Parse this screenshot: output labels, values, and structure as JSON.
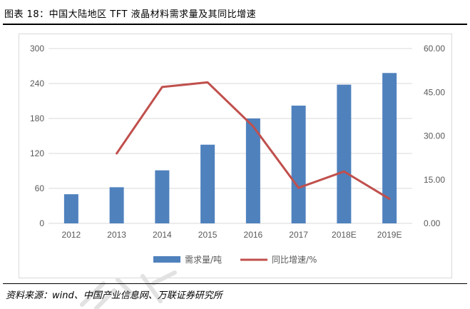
{
  "figure_title": "图表 18：中国大陆地区 TFT 液晶材料需求量及其同比增速",
  "source_text": "资料来源：wind、中国产业信息网、万联证券研究所",
  "colors": {
    "bar": "#4f81bd",
    "line": "#c0504d",
    "grid": "#d9d9d9",
    "axis_text": "#595959"
  },
  "chart_data": {
    "type": "bar",
    "categories": [
      "2012",
      "2013",
      "2014",
      "2015",
      "2016",
      "2017",
      "2018E",
      "2019E"
    ],
    "series": [
      {
        "name": "需求量/吨",
        "type": "bar",
        "axis": "left",
        "values": [
          50,
          62,
          91,
          135,
          180,
          202,
          238,
          258
        ]
      },
      {
        "name": "同比增速/%",
        "type": "line",
        "axis": "right",
        "values": [
          null,
          24.0,
          46.8,
          48.4,
          33.3,
          12.2,
          17.8,
          8.4
        ]
      }
    ],
    "y_left": {
      "ylim": [
        0,
        300
      ],
      "ticks": [
        "0",
        "60",
        "120",
        "180",
        "240",
        "300"
      ]
    },
    "y_right": {
      "ylim": [
        0,
        60
      ],
      "ticks": [
        "0.00",
        "15.00",
        "30.00",
        "45.00",
        "60.00"
      ]
    },
    "grid": true,
    "legend_position": "bottom"
  }
}
